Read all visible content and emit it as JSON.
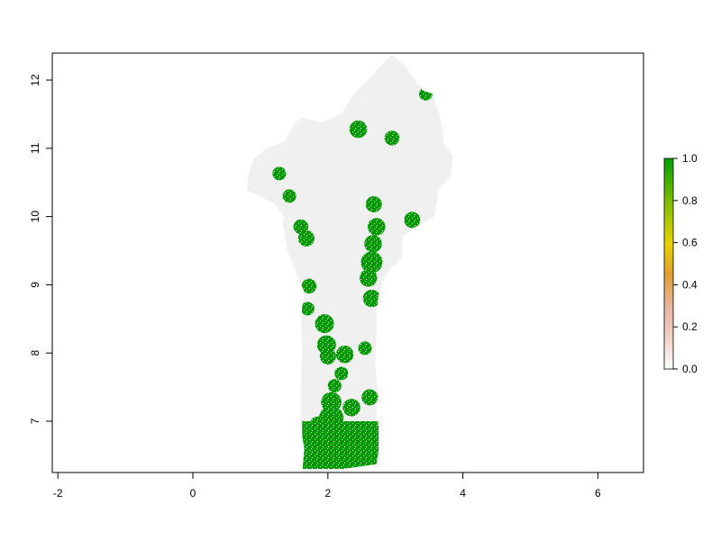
{
  "chart_data": {
    "type": "raster-map",
    "region": "Benin",
    "xlim": [
      -2.05,
      6.7
    ],
    "ylim": [
      6.25,
      12.4
    ],
    "x_ticks": [
      -2,
      0,
      2,
      4,
      6
    ],
    "y_ticks": [
      7,
      8,
      9,
      10,
      11,
      12
    ],
    "x_tick_labels": [
      "-2",
      "0",
      "2",
      "4",
      "6"
    ],
    "y_tick_labels": [
      "7",
      "8",
      "9",
      "10",
      "11",
      "12"
    ],
    "legend": {
      "position": "right",
      "min": 0,
      "max": 1,
      "ticks": [
        0.0,
        0.2,
        0.4,
        0.6,
        0.8,
        1.0
      ],
      "tick_labels": [
        "0.0",
        "0.2",
        "0.4",
        "0.6",
        "0.8",
        "1.0"
      ],
      "colors": [
        "#f2f2f2",
        "#e6b49e",
        "#e0a030",
        "#e6d200",
        "#7cbc00",
        "#00a000"
      ]
    },
    "background_color": "#f0f0f0",
    "value_color": "#009900",
    "boundary": [
      [
        2.72,
        6.37
      ],
      [
        1.62,
        6.22
      ],
      [
        1.65,
        6.6
      ],
      [
        1.6,
        6.9
      ],
      [
        1.6,
        7.6
      ],
      [
        1.62,
        8.1
      ],
      [
        1.6,
        8.5
      ],
      [
        1.65,
        8.9
      ],
      [
        1.52,
        9.2
      ],
      [
        1.4,
        9.5
      ],
      [
        1.33,
        9.9
      ],
      [
        1.35,
        10.0
      ],
      [
        1.2,
        10.2
      ],
      [
        0.8,
        10.38
      ],
      [
        0.82,
        10.6
      ],
      [
        0.9,
        10.85
      ],
      [
        1.1,
        11.0
      ],
      [
        1.35,
        11.1
      ],
      [
        1.5,
        11.35
      ],
      [
        1.6,
        11.45
      ],
      [
        1.9,
        11.38
      ],
      [
        2.2,
        11.5
      ],
      [
        2.35,
        11.75
      ],
      [
        2.7,
        12.12
      ],
      [
        2.95,
        12.38
      ],
      [
        3.15,
        12.2
      ],
      [
        3.4,
        11.85
      ],
      [
        3.55,
        11.8
      ],
      [
        3.65,
        11.5
      ],
      [
        3.7,
        11.3
      ],
      [
        3.72,
        11.05
      ],
      [
        3.85,
        10.9
      ],
      [
        3.82,
        10.6
      ],
      [
        3.65,
        10.4
      ],
      [
        3.58,
        10.0
      ],
      [
        3.3,
        9.85
      ],
      [
        3.1,
        9.7
      ],
      [
        3.1,
        9.4
      ],
      [
        2.85,
        9.15
      ],
      [
        2.75,
        8.85
      ],
      [
        2.72,
        8.6
      ],
      [
        2.72,
        8.2
      ],
      [
        2.7,
        7.8
      ],
      [
        2.75,
        7.4
      ],
      [
        2.72,
        7.1
      ],
      [
        2.78,
        6.75
      ],
      [
        2.72,
        6.37
      ]
    ],
    "hotspots": [
      {
        "x": 3.45,
        "y": 11.8,
        "r": 0.1,
        "value": 1.0
      },
      {
        "x": 2.45,
        "y": 11.28,
        "r": 0.13,
        "value": 1.0
      },
      {
        "x": 2.95,
        "y": 11.15,
        "r": 0.11,
        "value": 1.0
      },
      {
        "x": 1.28,
        "y": 10.63,
        "r": 0.1,
        "value": 1.0
      },
      {
        "x": 1.43,
        "y": 10.3,
        "r": 0.1,
        "value": 1.0
      },
      {
        "x": 2.68,
        "y": 10.18,
        "r": 0.12,
        "value": 1.0
      },
      {
        "x": 3.25,
        "y": 9.95,
        "r": 0.12,
        "value": 1.0
      },
      {
        "x": 1.6,
        "y": 9.85,
        "r": 0.11,
        "value": 1.0
      },
      {
        "x": 1.68,
        "y": 9.68,
        "r": 0.12,
        "value": 1.0
      },
      {
        "x": 2.72,
        "y": 9.85,
        "r": 0.13,
        "value": 1.0
      },
      {
        "x": 2.67,
        "y": 9.6,
        "r": 0.13,
        "value": 1.0
      },
      {
        "x": 2.65,
        "y": 9.33,
        "r": 0.16,
        "value": 1.0
      },
      {
        "x": 2.6,
        "y": 9.1,
        "r": 0.13,
        "value": 1.0
      },
      {
        "x": 1.72,
        "y": 8.98,
        "r": 0.11,
        "value": 1.0
      },
      {
        "x": 2.65,
        "y": 8.8,
        "r": 0.13,
        "value": 1.0
      },
      {
        "x": 1.7,
        "y": 8.65,
        "r": 0.1,
        "value": 1.0
      },
      {
        "x": 1.95,
        "y": 8.43,
        "r": 0.14,
        "value": 1.0
      },
      {
        "x": 1.98,
        "y": 8.12,
        "r": 0.14,
        "value": 1.0
      },
      {
        "x": 2.0,
        "y": 7.95,
        "r": 0.12,
        "value": 1.0
      },
      {
        "x": 2.25,
        "y": 7.98,
        "r": 0.13,
        "value": 1.0
      },
      {
        "x": 2.55,
        "y": 8.07,
        "r": 0.1,
        "value": 1.0
      },
      {
        "x": 2.2,
        "y": 7.7,
        "r": 0.1,
        "value": 1.0
      },
      {
        "x": 2.1,
        "y": 7.52,
        "r": 0.1,
        "value": 1.0
      },
      {
        "x": 2.62,
        "y": 7.35,
        "r": 0.12,
        "value": 1.0
      },
      {
        "x": 2.35,
        "y": 7.2,
        "r": 0.13,
        "value": 1.0
      },
      {
        "x": 2.05,
        "y": 7.28,
        "r": 0.15,
        "value": 1.0
      },
      {
        "x": 2.05,
        "y": 7.05,
        "r": 0.18,
        "value": 1.0
      },
      {
        "x": 1.85,
        "y": 6.95,
        "r": 0.12,
        "value": 1.0
      }
    ],
    "coastal_band": {
      "x_min": 1.62,
      "x_max": 2.75,
      "y_min": 6.3,
      "y_max": 7.0,
      "value": 1.0
    }
  }
}
